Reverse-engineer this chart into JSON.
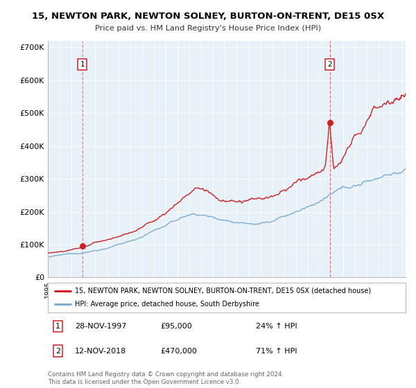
{
  "title": "15, NEWTON PARK, NEWTON SOLNEY, BURTON-ON-TRENT, DE15 0SX",
  "subtitle": "Price paid vs. HM Land Registry's House Price Index (HPI)",
  "ylabel_ticks": [
    "£0",
    "£100K",
    "£200K",
    "£300K",
    "£400K",
    "£500K",
    "£600K",
    "£700K"
  ],
  "ytick_values": [
    0,
    100000,
    200000,
    300000,
    400000,
    500000,
    600000,
    700000
  ],
  "ylim": [
    0,
    720000
  ],
  "xlim_start": 1995.0,
  "xlim_end": 2025.3,
  "sale1_date": 1997.92,
  "sale1_price": 95000,
  "sale1_label": "1",
  "sale2_date": 2018.88,
  "sale2_price": 470000,
  "sale2_label": "2",
  "red_line_color": "#cc2222",
  "blue_line_color": "#7aadd4",
  "dashed_line_color": "#ee6666",
  "marker_color": "#cc2222",
  "plot_bg_color": "#e8f0f8",
  "legend_line1": "15, NEWTON PARK, NEWTON SOLNEY, BURTON-ON-TRENT, DE15 0SX (detached house)",
  "legend_line2": "HPI: Average price, detached house, South Derbyshire",
  "annotation1_date": "28-NOV-1997",
  "annotation1_price": "£95,000",
  "annotation1_hpi": "24% ↑ HPI",
  "annotation2_date": "12-NOV-2018",
  "annotation2_price": "£470,000",
  "annotation2_hpi": "71% ↑ HPI",
  "footer": "Contains HM Land Registry data © Crown copyright and database right 2024.\nThis data is licensed under the Open Government Licence v3.0.",
  "background_color": "#ffffff",
  "grid_color": "#ffffff"
}
